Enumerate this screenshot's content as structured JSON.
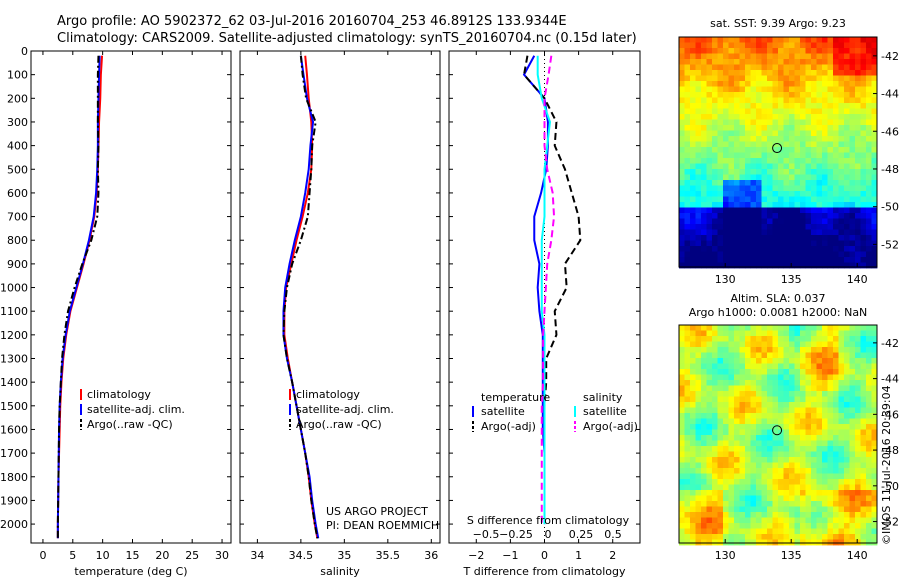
{
  "header": {
    "line1": "Argo profile: AO 5902372_62 03-Jul-2016 20160704_253 46.8912S 133.9344E",
    "line2": "Climatology: CARS2009. Satellite-adjusted climatology: synTS_20160704.nc (0.15d later)"
  },
  "colors": {
    "clim": "#ff0000",
    "sat": "#0000ff",
    "argo": "#000000",
    "sat_s": "#00ffff",
    "argo_s": "#ff00ff"
  },
  "panels": {
    "temperature": {
      "xlabel": "temperature (deg C)",
      "xticks": [
        0,
        5,
        10,
        15,
        20,
        25,
        30
      ],
      "xlim": [
        -2,
        31.5
      ],
      "legend": [
        "climatology",
        "satellite-adj. clim.",
        "Argo(..raw -QC)"
      ]
    },
    "salinity": {
      "xlabel": "salinity",
      "xticks": [
        34,
        34.5,
        35,
        35.5,
        36
      ],
      "xticklabels": [
        "34",
        "34.5",
        "35",
        "35.5",
        "36"
      ],
      "xlim": [
        33.8,
        36.1
      ],
      "legend": [
        "climatology",
        "satellite-adj. clim.",
        "Argo(..raw -QC)"
      ],
      "project": [
        "US ARGO PROJECT",
        "PI: DEAN ROEMMICH"
      ]
    },
    "difference": {
      "xlabel": "T difference from climatology",
      "xlabel2": "S difference from climatology",
      "xticks": [
        -2,
        -1,
        0,
        1,
        2
      ],
      "xticklabels": [
        "−2",
        "−1",
        "0",
        "1",
        "2"
      ],
      "xlim": [
        -2.8,
        2.8
      ],
      "sticks": [
        -0.5,
        -0.25,
        0,
        0.25,
        0.5
      ],
      "sticklabels": [
        "−0.5",
        "−0.25",
        "0",
        "0.25",
        "0.5"
      ],
      "legend_t_head": "temperature",
      "legend_s_head": "salinity",
      "legend_t": [
        "satellite",
        "Argo(-adj)"
      ],
      "legend_s": [
        "satellite",
        "Argo(-adj)"
      ]
    },
    "depth": {
      "ylim": [
        0,
        2080
      ],
      "yticks": [
        0,
        100,
        200,
        300,
        400,
        500,
        600,
        700,
        800,
        900,
        1000,
        1100,
        1200,
        1300,
        1400,
        1500,
        1600,
        1700,
        1800,
        1900,
        2000
      ]
    },
    "sst_map": {
      "title": "sat. SST: 9.39 Argo: 9.23",
      "xticks": [
        "130",
        "135",
        "140"
      ],
      "yticks": [
        "-42",
        "-44",
        "-46",
        "-48",
        "-50",
        "-52"
      ]
    },
    "sla_map": {
      "title1": "Altim. SLA: 0.037",
      "title2": "Argo h1000: 0.0081 h2000: NaN",
      "xticks": [
        "130",
        "135",
        "140"
      ],
      "yticks": [
        "-42",
        "-44",
        "-46",
        "-48",
        "-50",
        "-52"
      ]
    },
    "credit": "©IMOS 11-Jul-2016 20:39:04"
  },
  "chart_data": [
    {
      "type": "line",
      "xlabel": "temperature (deg C)",
      "ylim": [
        0,
        2080
      ],
      "xlim": [
        -2,
        31.5
      ],
      "series": [
        {
          "name": "climatology",
          "x": [
            9.9,
            9.7,
            9.6,
            9.4,
            9.3,
            9.2,
            9.0,
            8.6,
            7.8,
            6.8,
            5.7,
            4.6,
            3.9,
            3.4,
            3.1,
            2.9,
            2.8,
            2.7,
            2.6,
            2.55,
            2.5,
            2.5
          ],
          "y": [
            20,
            100,
            200,
            300,
            400,
            500,
            600,
            700,
            800,
            900,
            1000,
            1100,
            1200,
            1300,
            1400,
            1500,
            1600,
            1700,
            1800,
            1900,
            2000,
            2060
          ]
        },
        {
          "name": "satellite-adj. clim.",
          "x": [
            9.5,
            9.4,
            9.3,
            9.2,
            9.2,
            9.1,
            8.9,
            8.5,
            7.7,
            6.7,
            5.6,
            4.5,
            3.8,
            3.3,
            3.0,
            2.8,
            2.7,
            2.65,
            2.6,
            2.55,
            2.5,
            2.5
          ],
          "y": [
            20,
            100,
            200,
            300,
            400,
            500,
            600,
            700,
            800,
            900,
            1000,
            1100,
            1200,
            1300,
            1400,
            1500,
            1600,
            1700,
            1800,
            1900,
            2000,
            2060
          ]
        },
        {
          "name": "Argo(..raw -QC)",
          "x": [
            9.3,
            9.2,
            9.2,
            9.2,
            9.3,
            9.2,
            9.3,
            9.1,
            8.1,
            6.6,
            5.3,
            4.2,
            3.6,
            3.2,
            3.0,
            2.8,
            2.7,
            2.65,
            2.6,
            2.55,
            2.5,
            2.5
          ],
          "y": [
            20,
            100,
            200,
            300,
            400,
            500,
            600,
            700,
            800,
            900,
            1000,
            1100,
            1200,
            1300,
            1400,
            1500,
            1600,
            1700,
            1800,
            1900,
            2000,
            2060
          ]
        }
      ]
    },
    {
      "type": "line",
      "xlabel": "salinity",
      "ylim": [
        0,
        2080
      ],
      "xlim": [
        33.8,
        36.1
      ],
      "series": [
        {
          "name": "climatology",
          "x": [
            34.55,
            34.57,
            34.59,
            34.62,
            34.63,
            34.62,
            34.58,
            34.52,
            34.45,
            34.39,
            34.33,
            34.31,
            34.31,
            34.35,
            34.4,
            34.45,
            34.5,
            34.55,
            34.59,
            34.62,
            34.66,
            34.69
          ],
          "y": [
            20,
            100,
            200,
            300,
            400,
            500,
            600,
            700,
            800,
            900,
            1000,
            1100,
            1200,
            1300,
            1400,
            1500,
            1600,
            1700,
            1800,
            1900,
            2000,
            2060
          ]
        },
        {
          "name": "satellite-adj. clim.",
          "x": [
            34.5,
            34.53,
            34.57,
            34.64,
            34.61,
            34.59,
            34.55,
            34.5,
            34.43,
            34.37,
            34.32,
            34.3,
            34.3,
            34.34,
            34.4,
            34.45,
            34.5,
            34.55,
            34.6,
            34.63,
            34.67,
            34.7
          ],
          "y": [
            20,
            100,
            200,
            300,
            400,
            500,
            600,
            700,
            800,
            900,
            1000,
            1100,
            1200,
            1300,
            1400,
            1500,
            1600,
            1700,
            1800,
            1900,
            2000,
            2060
          ]
        },
        {
          "name": "Argo(..raw -QC)",
          "x": [
            34.5,
            34.52,
            34.56,
            34.67,
            34.63,
            34.62,
            34.6,
            34.58,
            34.5,
            34.4,
            34.34,
            34.31,
            34.3,
            34.34,
            34.4,
            34.45,
            34.5,
            34.55,
            34.59,
            34.62,
            34.66,
            34.69
          ],
          "y": [
            20,
            100,
            200,
            300,
            400,
            500,
            600,
            700,
            800,
            900,
            1000,
            1100,
            1200,
            1300,
            1400,
            1500,
            1600,
            1700,
            1800,
            1900,
            2000,
            2060
          ]
        }
      ]
    },
    {
      "type": "line",
      "xlabel": "T difference from climatology",
      "ylim": [
        0,
        2080
      ],
      "xlim": [
        -2.8,
        2.8
      ],
      "series": [
        {
          "name": "temperature satellite",
          "x": [
            -0.3,
            -0.6,
            0.0,
            0.1,
            0.1,
            0.05,
            -0.1,
            -0.3,
            -0.3,
            -0.15,
            -0.2,
            -0.15,
            -0.05,
            -0.05,
            -0.05,
            -0.05,
            -0.05,
            0.0,
            0.0,
            0.0,
            0.0
          ],
          "y": [
            20,
            100,
            200,
            300,
            400,
            500,
            600,
            700,
            800,
            900,
            1000,
            1100,
            1200,
            1300,
            1400,
            1500,
            1600,
            1700,
            1800,
            1900,
            2000
          ]
        },
        {
          "name": "temperature Argo(-adj)",
          "x": [
            -0.5,
            -0.6,
            0.0,
            0.35,
            0.3,
            0.6,
            0.8,
            1.0,
            1.05,
            0.6,
            0.65,
            0.3,
            0.35,
            0.05,
            0.05,
            0.0,
            0.0,
            0.0,
            0.0,
            0.0,
            0.0
          ],
          "y": [
            20,
            100,
            200,
            300,
            400,
            500,
            600,
            700,
            800,
            900,
            1000,
            1100,
            1200,
            1300,
            1400,
            1500,
            1600,
            1700,
            1800,
            1900,
            2000
          ]
        },
        {
          "name": "salinity satellite",
          "x": [
            -0.05,
            -0.05,
            -0.02,
            0.04,
            0.02,
            0.0,
            0.0,
            0.0,
            -0.02,
            -0.02,
            -0.02,
            -0.02,
            0.0,
            0.0,
            0.0,
            0.0,
            0.0,
            0.0,
            0.0,
            0.0,
            0.0
          ],
          "y": [
            20,
            100,
            200,
            300,
            400,
            500,
            600,
            700,
            800,
            900,
            1000,
            1100,
            1200,
            1300,
            1400,
            1500,
            1600,
            1700,
            1800,
            1900,
            2000
          ]
        },
        {
          "name": "salinity Argo(-adj)",
          "x": [
            0.05,
            0.03,
            0.0,
            0.0,
            0.0,
            0.02,
            0.06,
            0.07,
            0.05,
            0.02,
            0.01,
            0.0,
            -0.01,
            -0.01,
            -0.01,
            -0.02,
            -0.02,
            -0.02,
            -0.02,
            -0.02,
            -0.02
          ],
          "y": [
            20,
            100,
            200,
            300,
            400,
            500,
            600,
            700,
            800,
            900,
            1000,
            1100,
            1200,
            1300,
            1400,
            1500,
            1600,
            1700,
            1800,
            1900,
            2000
          ]
        }
      ]
    }
  ]
}
